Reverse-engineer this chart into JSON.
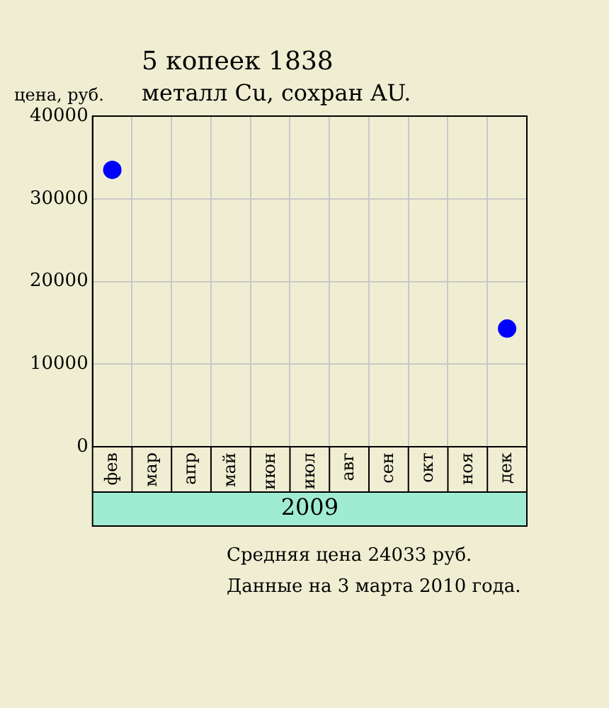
{
  "chart_data": {
    "type": "scatter",
    "title": "5 копеек 1838",
    "subtitle": "металл Cu, сохран AU.",
    "ylabel": "цена, руб.",
    "xlabel": "2009",
    "categories": [
      "фев",
      "мар",
      "апр",
      "май",
      "июн",
      "июл",
      "авг",
      "сен",
      "окт",
      "ноя",
      "дек"
    ],
    "series": [
      {
        "color": "#0000ff",
        "values": [
          33500,
          null,
          null,
          null,
          null,
          null,
          null,
          null,
          null,
          null,
          14300
        ]
      }
    ],
    "ylim": [
      0,
      40000
    ],
    "yticks": [
      0,
      10000,
      20000,
      30000,
      40000
    ],
    "grid": true,
    "marker": "circle",
    "annotations": [
      "Средняя цена 24033 руб.",
      "Данные на 3 марта 2010 года."
    ]
  }
}
